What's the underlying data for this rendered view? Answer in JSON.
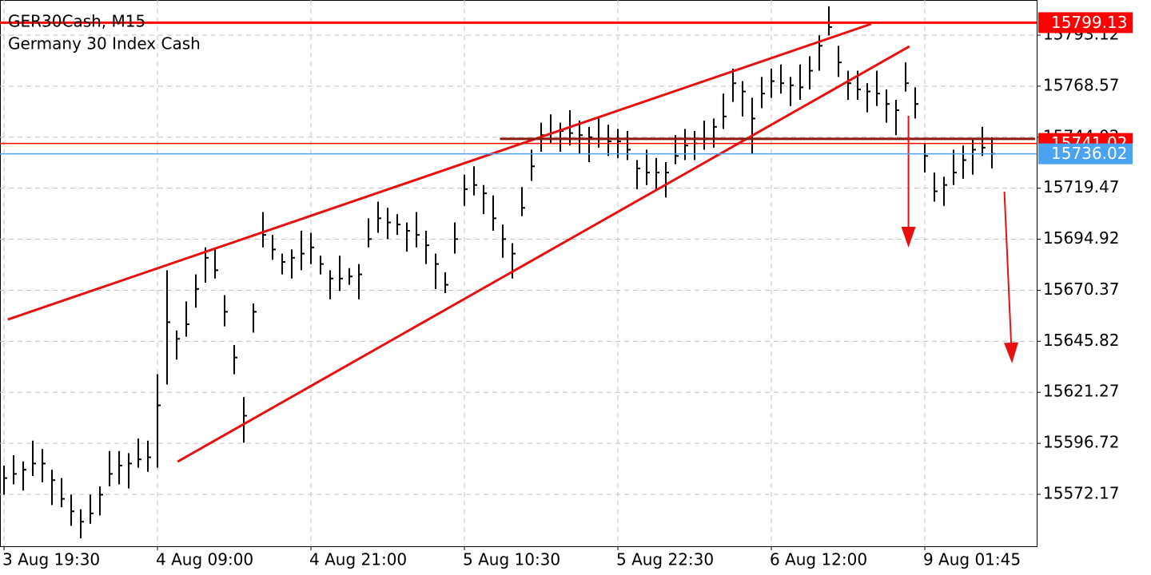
{
  "chart_data": {
    "type": "hlc",
    "title": "GER30Cash, M15",
    "subtitle": "Germany 30 Index Cash",
    "color": "#000000",
    "grid": true,
    "categories": [
      "3 Aug 19:30",
      null,
      null,
      null,
      null,
      null,
      null,
      null,
      null,
      null,
      null,
      null,
      null,
      null,
      null,
      null,
      "4 Aug 09:00",
      null,
      null,
      null,
      null,
      null,
      null,
      null,
      null,
      null,
      null,
      null,
      null,
      null,
      null,
      null,
      "4 Aug 21:00",
      null,
      null,
      null,
      null,
      null,
      null,
      null,
      null,
      null,
      null,
      null,
      null,
      null,
      null,
      null,
      "5 Aug 10:30",
      null,
      null,
      null,
      null,
      null,
      null,
      null,
      null,
      null,
      null,
      null,
      null,
      null,
      null,
      null,
      "5 Aug 22:30",
      null,
      null,
      null,
      null,
      null,
      null,
      null,
      null,
      null,
      null,
      null,
      null,
      null,
      null,
      null,
      "6 Aug 12:00",
      null,
      null,
      null,
      null,
      null,
      null,
      null,
      null,
      null,
      null,
      null,
      null,
      null,
      null,
      null,
      "9 Aug 01:45",
      null,
      null,
      null,
      null,
      null,
      null,
      null
    ],
    "high": [
      15586,
      15591,
      15588,
      15598,
      15594,
      15584,
      15580,
      15572,
      15565,
      15572,
      15576,
      15593,
      15593,
      15592,
      15599,
      15598,
      15630,
      15680,
      15651,
      15665,
      15678,
      15691,
      15690,
      15668,
      15644,
      15619,
      15664,
      15708,
      15697,
      15688,
      15690,
      15699,
      15698,
      15687,
      15680,
      15687,
      15681,
      15683,
      15705,
      15713,
      15710,
      15707,
      15703,
      15708,
      15699,
      15688,
      15679,
      15703,
      15726,
      15730,
      15721,
      15716,
      15702,
      15693,
      15720,
      15738,
      15751,
      15755,
      15751,
      15757,
      15752,
      15749,
      15753,
      15750,
      15748,
      15747,
      15733,
      15738,
      15734,
      15732,
      15745,
      15748,
      15747,
      15752,
      15753,
      15765,
      15777,
      15771,
      15763,
      15773,
      15777,
      15779,
      15773,
      15779,
      15783,
      15793,
      15807,
      15788,
      15776,
      15776,
      15770,
      15776,
      15767,
      15762,
      15780,
      15768,
      15741,
      15727,
      15725,
      15738,
      15740,
      15743,
      15749,
      15744
    ],
    "low": [
      15572,
      15577,
      15574,
      15581,
      15578,
      15567,
      15566,
      15557,
      15551,
      15558,
      15562,
      15576,
      15577,
      15575,
      15585,
      15583,
      15585,
      15625,
      15637,
      15648,
      15662,
      15674,
      15676,
      15653,
      15630,
      15597,
      15650,
      15691,
      15685,
      15678,
      15676,
      15680,
      15683,
      15678,
      15666,
      15670,
      15673,
      15666,
      15691,
      15698,
      15695,
      15697,
      15689,
      15691,
      15683,
      15671,
      15669,
      15688,
      15711,
      15716,
      15707,
      15699,
      15686,
      15676,
      15706,
      15723,
      15737,
      15741,
      15737,
      15740,
      15736,
      15732,
      15739,
      15735,
      15734,
      15733,
      15719,
      15721,
      15718,
      15715,
      15731,
      15733,
      15733,
      15738,
      15739,
      15748,
      15761,
      15754,
      15736,
      15758,
      15763,
      15765,
      15759,
      15762,
      15767,
      15776,
      15793,
      15773,
      15762,
      15762,
      15756,
      15759,
      15751,
      15745,
      15766,
      15753,
      15727,
      15713,
      15711,
      15721,
      15724,
      15726,
      15735,
      15729
    ],
    "close": [
      15580,
      15582,
      15584,
      15587,
      15587,
      15579,
      15570,
      15564,
      15559,
      15563,
      15572,
      15582,
      15586,
      15587,
      15589,
      15590,
      15615,
      15655,
      15647,
      15654,
      15671,
      15686,
      15680,
      15660,
      15638,
      15610,
      15660,
      15697,
      15690,
      15684,
      15686,
      15688,
      15691,
      15683,
      15676,
      15676,
      15677,
      15678,
      15695,
      15705,
      15703,
      15702,
      15699,
      15697,
      15692,
      15683,
      15673,
      15695,
      15719,
      15721,
      15717,
      15705,
      15695,
      15688,
      15710,
      15730,
      15745,
      15746,
      15747,
      15746,
      15745,
      15744,
      15743,
      15742,
      15742,
      15738,
      15729,
      15727,
      15727,
      15727,
      15735,
      15740,
      15741,
      15743,
      15749,
      15754,
      15770,
      15766,
      15753,
      15765,
      15771,
      15770,
      15769,
      15768,
      15776,
      15788,
      15797,
      15780,
      15770,
      15767,
      15766,
      15765,
      15760,
      15757,
      15770,
      15760,
      15735,
      15718,
      15721,
      15727,
      15733,
      15738,
      15739,
      15736.02
    ],
    "xlim": [
      -0.42,
      107.67
    ],
    "ylim": [
      15547.19,
      15810.03
    ],
    "yticks": [
      15572.17,
      15596.72,
      15621.27,
      15645.82,
      15670.37,
      15694.92,
      15719.47,
      15744.02,
      15768.57,
      15793.12
    ],
    "levels": [
      {
        "value": 15799.13,
        "color": "#ff0000"
      },
      {
        "value": 15741.02,
        "color": "#ff0000"
      },
      {
        "value": 15736.02,
        "color": "#4aa3f0"
      }
    ],
    "trendlines": [
      {
        "x": [
          0.4,
          90.4
        ],
        "y": [
          15656.3,
          15798.5
        ],
        "color": "#e8100f"
      },
      {
        "x": [
          18.1,
          94.4
        ],
        "y": [
          15587.9,
          15787.7
        ],
        "color": "#e8100f"
      },
      {
        "x": [
          51.7,
          107.5
        ],
        "y": [
          15743.2,
          15743.2
        ],
        "color": "#8b1a10"
      }
    ],
    "arrows": [
      {
        "x": [
          94.3,
          94.3
        ],
        "y": [
          15754.3,
          15690.9
        ],
        "color": "#e8100f"
      },
      {
        "x": [
          104.3,
          105.1
        ],
        "y": [
          15717.8,
          15635.2
        ],
        "color": "#e8100f"
      }
    ]
  }
}
